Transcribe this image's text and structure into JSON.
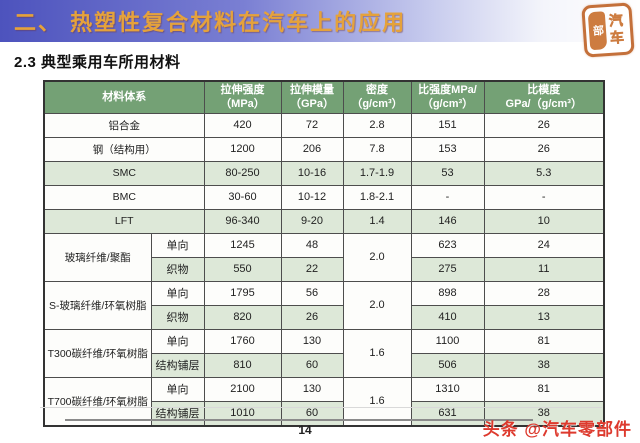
{
  "header": {
    "title": "二、 热塑性复合材料在汽车上的应用",
    "seal": {
      "left_char": "部",
      "right_chars": [
        "汽",
        "车"
      ]
    }
  },
  "subtitle": "2.3 典型乘用车所用材料",
  "colors": {
    "bar_blue": "#4d53bd",
    "title_orange": "#e5a23b",
    "table_header_green": "#74a175",
    "row_tint_green": "#dde8d8",
    "watermark_red": "#dd3a2e",
    "seal_orange": "#c4703a"
  },
  "table": {
    "columns": [
      {
        "label": "材料体系"
      },
      {
        "label": "拉伸强度\n（MPa）"
      },
      {
        "label": "拉伸模量\n（GPa）"
      },
      {
        "label": "密度\n（g/cm³）"
      },
      {
        "label": "比强度MPa/\n（g/cm³）"
      },
      {
        "label": "比模度\nGPa/（g/cm³）"
      }
    ],
    "simple_rows": [
      {
        "name": "铝合金",
        "tensile": "420",
        "modulus": "72",
        "density": "2.8",
        "specific_strength": "151",
        "specific_modulus": "26"
      },
      {
        "name": "钢（结构用）",
        "tensile": "1200",
        "modulus": "206",
        "density": "7.8",
        "specific_strength": "153",
        "specific_modulus": "26"
      },
      {
        "name": "SMC",
        "tensile": "80-250",
        "modulus": "10-16",
        "density": "1.7-1.9",
        "specific_strength": "53",
        "specific_modulus": "5.3"
      },
      {
        "name": "BMC",
        "tensile": "30-60",
        "modulus": "10-12",
        "density": "1.8-2.1",
        "specific_strength": "-",
        "specific_modulus": "-"
      },
      {
        "name": "LFT",
        "tensile": "96-340",
        "modulus": "9-20",
        "density": "1.4",
        "specific_strength": "146",
        "specific_modulus": "10"
      }
    ],
    "group_rows": [
      {
        "name": "玻璃纤维/聚酯",
        "density": "2.0",
        "variants": [
          {
            "type": "单向",
            "tensile": "1245",
            "modulus": "48",
            "specific_strength": "623",
            "specific_modulus": "24"
          },
          {
            "type": "织物",
            "tensile": "550",
            "modulus": "22",
            "specific_strength": "275",
            "specific_modulus": "11"
          }
        ]
      },
      {
        "name": "S-玻璃纤维/环氧树脂",
        "density": "2.0",
        "variants": [
          {
            "type": "单向",
            "tensile": "1795",
            "modulus": "56",
            "specific_strength": "898",
            "specific_modulus": "28"
          },
          {
            "type": "织物",
            "tensile": "820",
            "modulus": "26",
            "specific_strength": "410",
            "specific_modulus": "13"
          }
        ]
      },
      {
        "name": "T300碳纤维/环氧树脂",
        "density": "1.6",
        "variants": [
          {
            "type": "单向",
            "tensile": "1760",
            "modulus": "130",
            "specific_strength": "1100",
            "specific_modulus": "81"
          },
          {
            "type": "结构铺层",
            "tensile": "810",
            "modulus": "60",
            "specific_strength": "506",
            "specific_modulus": "38"
          }
        ]
      },
      {
        "name": "T700碳纤维/环氧树脂",
        "density": "1.6",
        "variants": [
          {
            "type": "单向",
            "tensile": "2100",
            "modulus": "130",
            "specific_strength": "1310",
            "specific_modulus": "81"
          },
          {
            "type": "结构铺层",
            "tensile": "1010",
            "modulus": "60",
            "specific_strength": "631",
            "specific_modulus": "38"
          }
        ]
      }
    ]
  },
  "footer": {
    "page_number": "14",
    "watermark": "头条 @汽车零部件"
  }
}
